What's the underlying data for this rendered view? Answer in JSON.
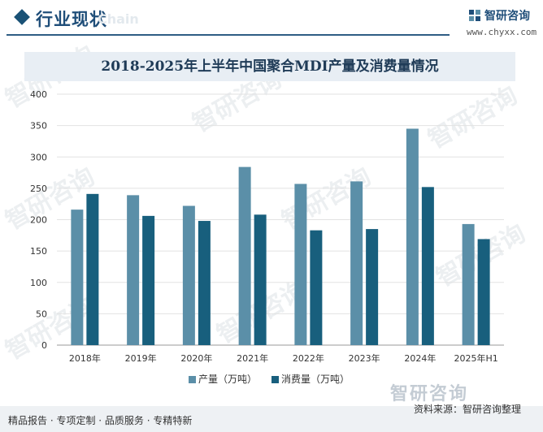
{
  "header": {
    "title": "行业现状",
    "ghost_text": "Chain",
    "brand_name": "智研咨询",
    "brand_url": "www.chyxx.com"
  },
  "chart_data": {
    "type": "bar",
    "title": "2018-2025年上半年中国聚合MDI产量及消费量情况",
    "categories": [
      "2018年",
      "2019年",
      "2020年",
      "2021年",
      "2022年",
      "2023年",
      "2024年",
      "2025年H1"
    ],
    "series": [
      {
        "name": "产量（万吨）",
        "color": "#5b8fa8",
        "values": [
          216,
          239,
          222,
          284,
          257,
          261,
          345,
          193
        ]
      },
      {
        "name": "消费量（万吨）",
        "color": "#185f7d",
        "values": [
          241,
          206,
          198,
          208,
          183,
          185,
          252,
          169
        ]
      }
    ],
    "ylim": [
      0,
      400
    ],
    "yticks": [
      0,
      50,
      100,
      150,
      200,
      250,
      300,
      350,
      400
    ],
    "grid": true,
    "legend": "bottom"
  },
  "footer": {
    "tagline": "精品报告 · 专项定制 · 品质服务 · 专精特新",
    "source": "资料来源：智研咨询整理",
    "brand": "智研咨询"
  },
  "watermark": "智研咨询"
}
